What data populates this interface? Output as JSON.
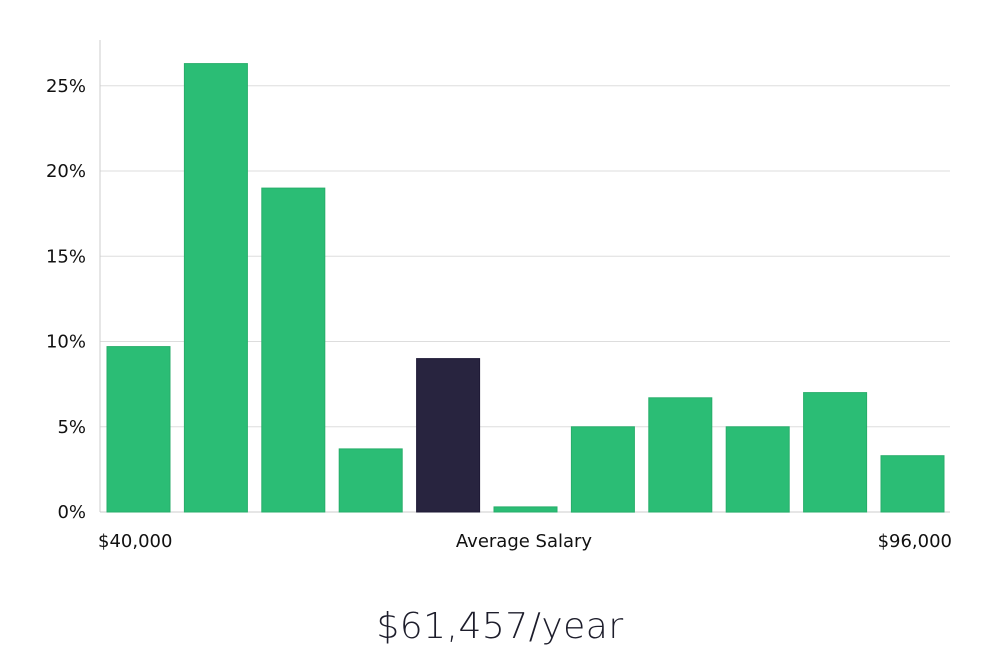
{
  "chart_data": {
    "type": "bar",
    "title": "",
    "xlabel": "Average Salary",
    "ylabel": "",
    "x_range_labels": {
      "min": "$40,000",
      "max": "$96,000"
    },
    "ylim": [
      0,
      0.275
    ],
    "yticks": [
      0,
      0.05,
      0.1,
      0.15,
      0.2,
      0.25
    ],
    "ytick_labels": [
      "0%",
      "5%",
      "10%",
      "15%",
      "20%",
      "25%"
    ],
    "grid": true,
    "values": [
      0.097,
      0.263,
      0.19,
      0.037,
      0.09,
      0.003,
      0.05,
      0.067,
      0.05,
      0.07,
      0.033
    ],
    "highlight_index": 4,
    "colors": {
      "bar": "#2bbd75",
      "highlight": "#28243f",
      "grid": "#dddddd",
      "axis": "#cccccc"
    }
  },
  "summary": {
    "text": "$61,457/year"
  }
}
